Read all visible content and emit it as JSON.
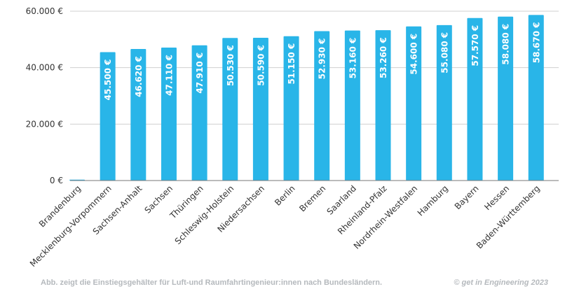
{
  "chart_data": {
    "type": "bar",
    "categories": [
      "Brandenburg",
      "Mecklenburg-Vorpommern",
      "Sachsen-Anhalt",
      "Sachsen",
      "Thüringen",
      "Schleswig-Holstein",
      "Niedersachsen",
      "Berlin",
      "Bremen",
      "Saarland",
      "Rheinland-Pfalz",
      "Nordrhein-Westfalen",
      "Hamburg",
      "Bayern",
      "Hessen",
      "Baden-Württemberg"
    ],
    "values": [
      0,
      45500,
      46620,
      47110,
      47910,
      50530,
      50590,
      51150,
      52930,
      53160,
      53260,
      54600,
      55080,
      57570,
      58080,
      58670
    ],
    "data_labels": [
      "",
      "45.500 €",
      "46.620 €",
      "47.110 €",
      "47.910 €",
      "50.530 €",
      "50.590 €",
      "51.150 €",
      "52.930 €",
      "53.160 €",
      "53.260 €",
      "54.600 €",
      "55.080 €",
      "57.570 €",
      "58.080 €",
      "58.670 €"
    ],
    "ylim": [
      0,
      60000
    ],
    "yticks": [
      0,
      20000,
      40000,
      60000
    ],
    "ytick_labels": [
      "0 €",
      "20.000 €",
      "40.000 €",
      "60.000 €"
    ],
    "grid": true,
    "bar_color": "#29b5e8",
    "xlabel": "",
    "ylabel": ""
  },
  "caption": "Abb. zeigt die Einstiegsgehälter für Luft-und Raumfahrtingenieur:innen nach Bundesländern.",
  "copyright": "© get in Engineering 2023"
}
